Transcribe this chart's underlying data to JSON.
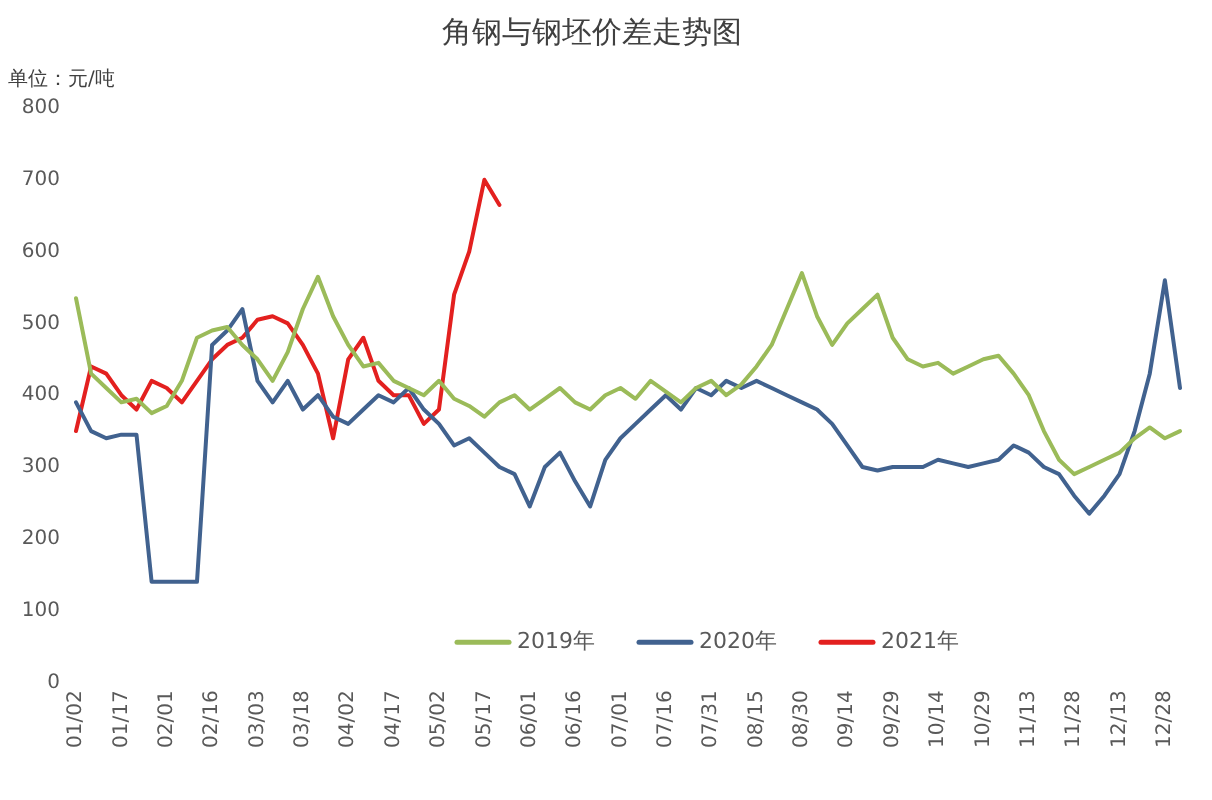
{
  "chart_data": {
    "type": "line",
    "title": "角钢与钢坯价差走势图",
    "ylabel": "单位：元/吨",
    "categories": [
      "01/02",
      null,
      null,
      "01/17",
      null,
      null,
      "02/01",
      null,
      null,
      "02/16",
      null,
      null,
      "03/03",
      null,
      null,
      "03/18",
      null,
      null,
      "04/02",
      null,
      null,
      "04/17",
      null,
      null,
      "05/02",
      null,
      null,
      "05/17",
      null,
      null,
      "06/01",
      null,
      null,
      "06/16",
      null,
      null,
      "07/01",
      null,
      null,
      "07/16",
      null,
      null,
      "07/31",
      null,
      null,
      "08/15",
      null,
      null,
      "08/30",
      null,
      null,
      "09/14",
      null,
      null,
      "09/29",
      null,
      null,
      "10/14",
      null,
      null,
      "10/29",
      null,
      null,
      "11/13",
      null,
      null,
      "11/28",
      null,
      null,
      "12/13",
      null,
      null,
      "12/28",
      null
    ],
    "series": [
      {
        "name": "2019年",
        "color": "#9bbb59",
        "values": [
          535,
          430,
          410,
          390,
          395,
          375,
          385,
          420,
          480,
          490,
          495,
          470,
          450,
          420,
          460,
          520,
          565,
          510,
          470,
          440,
          445,
          420,
          410,
          400,
          420,
          395,
          385,
          370,
          390,
          400,
          380,
          395,
          410,
          390,
          380,
          400,
          410,
          395,
          420,
          405,
          390,
          410,
          420,
          400,
          415,
          440,
          470,
          520,
          570,
          510,
          470,
          500,
          520,
          540,
          480,
          450,
          440,
          445,
          430,
          440,
          450,
          455,
          430,
          400,
          350,
          310,
          290,
          300,
          310,
          320,
          340,
          355,
          340,
          350
        ]
      },
      {
        "name": "2020年",
        "color": "#41628f",
        "values": [
          390,
          350,
          340,
          345,
          345,
          140,
          140,
          140,
          140,
          470,
          490,
          520,
          420,
          390,
          420,
          380,
          400,
          370,
          360,
          380,
          400,
          390,
          410,
          380,
          360,
          330,
          340,
          320,
          300,
          290,
          245,
          300,
          320,
          280,
          245,
          310,
          340,
          360,
          380,
          400,
          380,
          410,
          400,
          420,
          410,
          420,
          410,
          400,
          390,
          380,
          360,
          330,
          300,
          295,
          300,
          300,
          300,
          310,
          305,
          300,
          305,
          310,
          330,
          320,
          300,
          290,
          260,
          235,
          260,
          290,
          350,
          430,
          560,
          410
        ]
      },
      {
        "name": "2021年",
        "color": "#e3201f",
        "values": [
          350,
          440,
          430,
          400,
          380,
          420,
          410,
          390,
          420,
          450,
          470,
          480,
          505,
          510,
          500,
          470,
          430,
          340,
          450,
          480,
          420,
          400,
          400,
          360,
          380,
          540,
          600,
          700,
          665,
          null,
          null,
          null,
          null,
          null,
          null,
          null,
          null,
          null,
          null,
          null,
          null,
          null,
          null,
          null,
          null,
          null,
          null,
          null,
          null,
          null,
          null,
          null,
          null,
          null,
          null,
          null,
          null,
          null,
          null,
          null,
          null,
          null,
          null,
          null,
          null,
          null,
          null,
          null,
          null,
          null,
          null,
          null,
          null,
          null
        ]
      }
    ],
    "ylim": [
      0,
      800
    ],
    "yticks": [
      0,
      100,
      200,
      300,
      400,
      500,
      600,
      700,
      800
    ],
    "grid": false,
    "legend": "bottom",
    "marker": "none",
    "line_style": "solid"
  }
}
